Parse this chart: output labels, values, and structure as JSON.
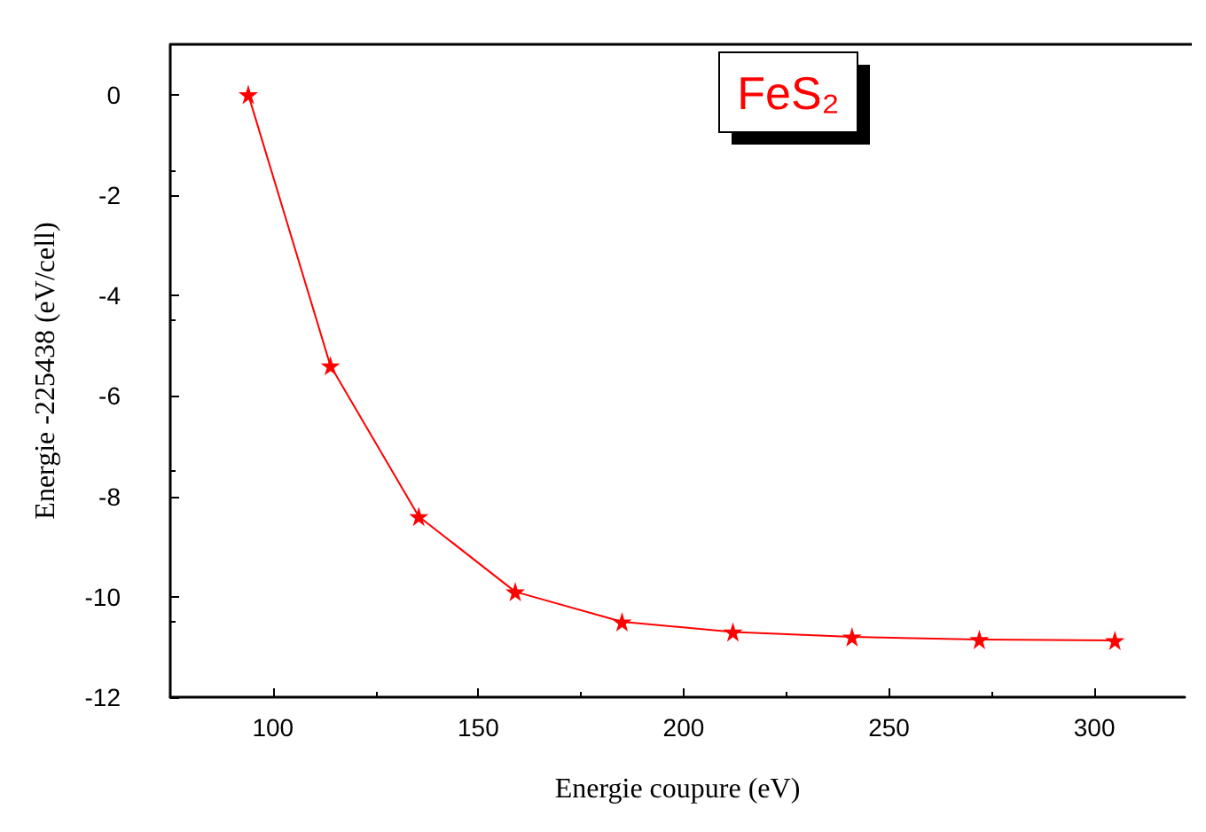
{
  "chart_data": {
    "type": "line",
    "xlabel": "Energie coupure (eV)",
    "ylabel": "Energie -225438 (eV/cell)",
    "annotations": [
      "FeS₂"
    ],
    "x": [
      94,
      114,
      135.5,
      159,
      185,
      212,
      241,
      272,
      305
    ],
    "series": [
      {
        "color": "#ff0000",
        "values": [
          0,
          -5.4,
          -8.4,
          -9.9,
          -10.5,
          -10.7,
          -10.8,
          -10.85,
          -10.87
        ]
      }
    ],
    "xlim": [
      75,
      322
    ],
    "xticks": [
      100,
      150,
      200,
      250,
      300
    ],
    "ylim": [
      -12,
      1
    ],
    "yticks": [
      -12,
      -10,
      -8,
      -6,
      -4,
      -2,
      0
    ],
    "grid": false,
    "marker": "star",
    "line_style": "solid"
  }
}
